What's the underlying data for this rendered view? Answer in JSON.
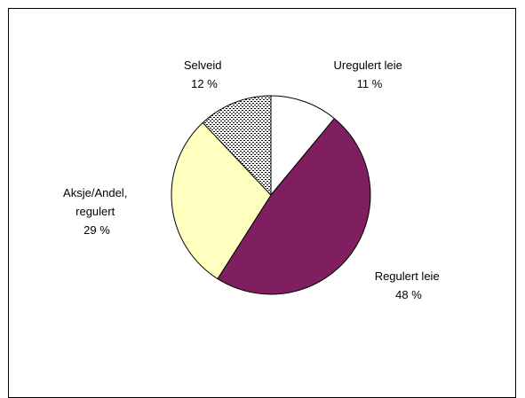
{
  "chart_data": {
    "type": "pie",
    "title": "",
    "legend": "none",
    "slices": [
      {
        "label_lines": [
          "Uregulert leie"
        ],
        "value_text": "11 %",
        "value": 11,
        "color": "#ffffff",
        "pattern": "none"
      },
      {
        "label_lines": [
          "Regulert leie"
        ],
        "value_text": "48 %",
        "value": 48,
        "color": "#7f1f5f",
        "pattern": "none"
      },
      {
        "label_lines": [
          "Aksje/Andel,",
          "regulert"
        ],
        "value_text": "29 %",
        "value": 29,
        "color": "#ffffc0",
        "pattern": "none"
      },
      {
        "label_lines": [
          "Selveid"
        ],
        "value_text": "12 %",
        "value": 12,
        "color": "#ffffff",
        "pattern": "dots"
      }
    ]
  }
}
